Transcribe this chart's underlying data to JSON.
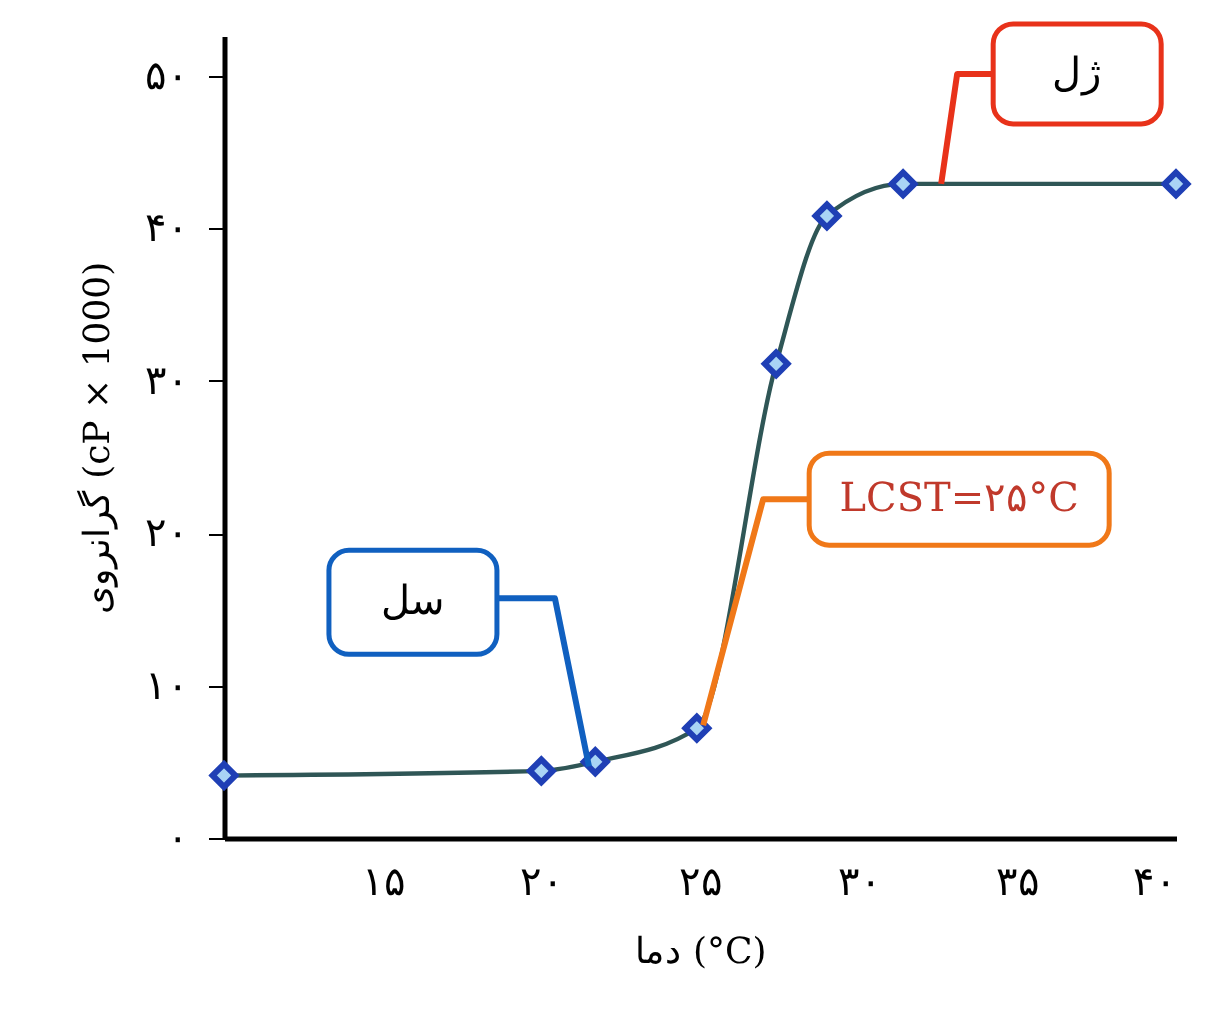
{
  "chart_data": {
    "type": "line",
    "xlabel": "دما (°C)",
    "ylabel": "گرانروی (cP × 1000)",
    "x": [
      10,
      20,
      21.7,
      24.9,
      27.4,
      29.0,
      31.4,
      40
    ],
    "series": [
      {
        "color": "#2f5656",
        "values": [
          4.1,
          4.4,
          5.0,
          7.2,
          31.1,
          40.8,
          42.9,
          42.9
        ]
      }
    ],
    "xlim": [
      10,
      40
    ],
    "ylim": [
      0,
      52.6
    ],
    "xticks": [
      {
        "value": 15,
        "label": "۱۵"
      },
      {
        "value": 20,
        "label": "۲۰"
      },
      {
        "value": 25,
        "label": "۲۵"
      },
      {
        "value": 30,
        "label": "۳۰"
      },
      {
        "value": 35,
        "label": "۳۵"
      },
      {
        "value": 40,
        "label": "۴۰"
      }
    ],
    "yticks": [
      {
        "value": 0,
        "label": "۰"
      },
      {
        "value": 10,
        "label": "۱۰"
      },
      {
        "value": 20,
        "label": "۲۰"
      },
      {
        "value": 30,
        "label": "۳۰"
      },
      {
        "value": 40,
        "label": "۴۰"
      },
      {
        "value": 50,
        "label": "۵۰"
      }
    ],
    "annotations": [
      {
        "text": "سل",
        "x": 21.5,
        "y": 4.7
      },
      {
        "text": "ژل",
        "x": 32.6,
        "y": 42.9
      },
      {
        "text": "LCST=۲۵°C",
        "x": 25.1,
        "y": 7.4
      }
    ],
    "marker": "diamond",
    "line_style": "solid",
    "grid": false
  }
}
